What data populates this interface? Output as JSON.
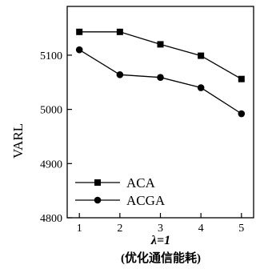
{
  "chart_data": {
    "type": "line",
    "x": [
      1,
      2,
      3,
      4,
      5
    ],
    "xticks": [
      "1",
      "2",
      "3",
      "4",
      "5"
    ],
    "yticks": [
      "4800",
      "4900",
      "5000",
      "5100"
    ],
    "ytick_values": [
      4800,
      4900,
      5000,
      5100
    ],
    "xlim": [
      0.7,
      5.3
    ],
    "ylim": [
      4800,
      5190
    ],
    "xlabel": "λ=1",
    "xlabel_sub": "(优化通信能耗)",
    "ylabel": "VARL",
    "legend_position": "bottom-left",
    "series": [
      {
        "name": "ACA",
        "marker": "square",
        "values": [
          5143,
          5143,
          5120,
          5099,
          5056
        ]
      },
      {
        "name": "ACGA",
        "marker": "circle",
        "values": [
          5110,
          5064,
          5059,
          5040,
          4992
        ]
      }
    ],
    "grid": false,
    "line_color": "#000000"
  }
}
